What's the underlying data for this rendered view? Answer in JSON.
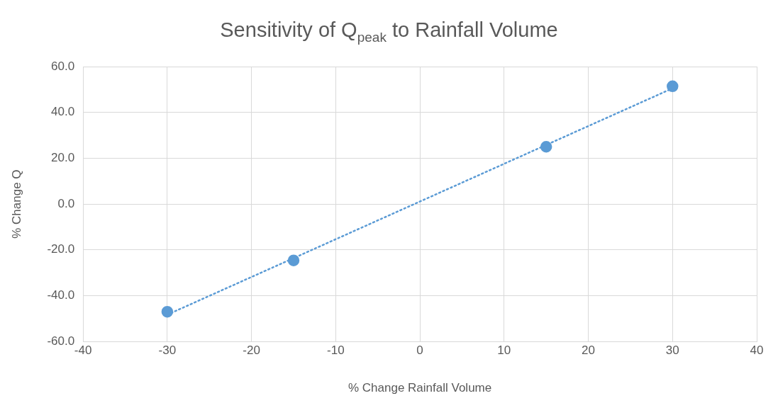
{
  "chart_data": {
    "type": "scatter",
    "title": "Sensitivity of Q$_{peak}$ to Rainfall Volume",
    "xlabel": "% Change Rainfall Volume",
    "ylabel": "% Change Q",
    "series": [
      {
        "type": "scatter",
        "color": "#5b9bd5",
        "x": [
          -30,
          -15,
          15,
          30
        ],
        "values": [
          -47.0,
          -24.6,
          25.0,
          51.4
        ],
        "marker": "circle"
      },
      {
        "type": "line",
        "color": "#5b9bd5",
        "x": [
          -30,
          30
        ],
        "values": [
          -48.3,
          50.5
        ],
        "marker": "none",
        "line_style": "dotted"
      }
    ],
    "xlim": [
      -40,
      40
    ],
    "xticks": [
      -40,
      -30,
      -20,
      -10,
      0,
      10,
      20,
      30,
      40
    ],
    "ylim": [
      -60,
      60
    ],
    "yticks": [
      {
        "value": -60,
        "label": "-60.0"
      },
      {
        "value": -40,
        "label": "-40.0"
      },
      {
        "value": -20,
        "label": "-20.0"
      },
      {
        "value": 0,
        "label": "0.0"
      },
      {
        "value": 20,
        "label": "20.0"
      },
      {
        "value": 40,
        "label": "40.0"
      },
      {
        "value": 60,
        "label": "60.0"
      }
    ],
    "grid": true,
    "legend": false
  }
}
